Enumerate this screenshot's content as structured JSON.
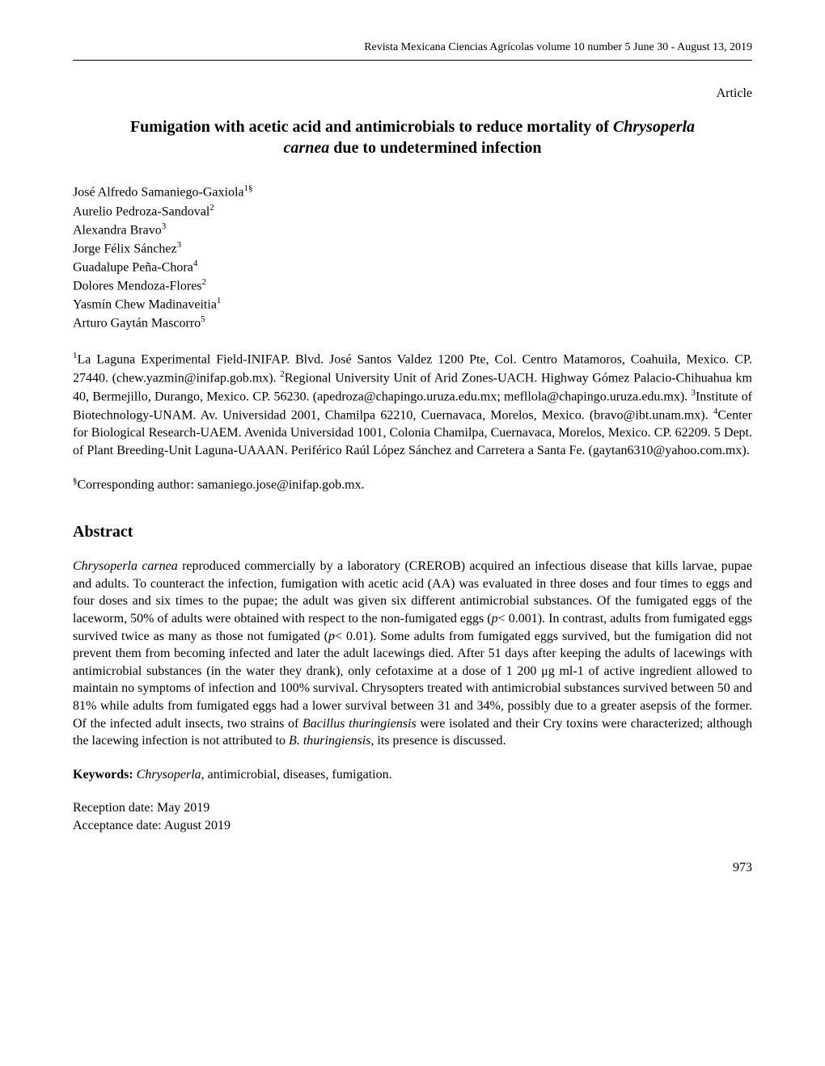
{
  "journal_header": "Revista Mexicana Ciencias Agrícolas  volume 10  number 5  June 30 - August 13, 2019",
  "article_label": "Article",
  "title_prefix": "Fumigation with acetic acid and antimicrobials to reduce mortality of ",
  "title_italic": "Chrysoperla carnea",
  "title_suffix": " due to undetermined infection",
  "authors": [
    {
      "name": "José Alfredo Samaniego-Gaxiola",
      "sup": "1§"
    },
    {
      "name": "Aurelio Pedroza-Sandoval",
      "sup": "2"
    },
    {
      "name": "Alexandra Bravo",
      "sup": "3"
    },
    {
      "name": "Jorge Félix Sánchez",
      "sup": "3"
    },
    {
      "name": "Guadalupe Peña-Chora",
      "sup": "4"
    },
    {
      "name": "Dolores Mendoza-Flores",
      "sup": "2"
    },
    {
      "name": "Yasmín Chew Madinaveitia",
      "sup": "1"
    },
    {
      "name": "Arturo Gaytán Mascorro",
      "sup": "5"
    }
  ],
  "affiliations": {
    "a1_sup": "1",
    "a1": "La Laguna Experimental Field-INIFAP. Blvd. José Santos Valdez 1200 Pte, Col. Centro Matamoros, Coahuila, Mexico. CP. 27440. (chew.yazmin@inifap.gob.mx). ",
    "a2_sup": "2",
    "a2": "Regional University Unit of Arid Zones-UACH. Highway Gómez Palacio-Chihuahua km 40, Bermejillo, Durango, Mexico. CP. 56230. (apedroza@chapingo.uruza.edu.mx; mefllola@chapingo.uruza.edu.mx). ",
    "a3_sup": "3",
    "a3": "Institute of Biotechnology-UNAM. Av. Universidad 2001, Chamilpa 62210, Cuernavaca, Morelos, Mexico. (bravo@ibt.unam.mx). ",
    "a4_sup": "4",
    "a4": "Center for Biological Research-UAEM. Avenida Universidad 1001, Colonia Chamilpa, Cuernavaca, Morelos, Mexico. CP. 62209. 5 Dept. of Plant Breeding-Unit Laguna-UAAAN. Periférico Raúl López Sánchez and Carretera a Santa Fe. (gaytan6310@yahoo.com.mx)."
  },
  "corresponding": {
    "sup": "§",
    "text": "Corresponding author: samaniego.jose@inifap.gob.mx."
  },
  "abstract_heading": "Abstract",
  "abstract": {
    "s1_italic": "Chrysoperla carnea",
    "s1": " reproduced commercially by a laboratory (CREROB) acquired an infectious disease that kills larvae, pupae and adults. To counteract the infection, fumigation with acetic acid (AA) was evaluated in three doses and four times to eggs and four doses and six times to the pupae; the adult was given six different antimicrobial substances. Of the fumigated eggs of the laceworm, 50% of adults were obtained with respect to the non-fumigated eggs (",
    "p1": "p",
    "s2": "< 0.001). In contrast, adults from fumigated eggs survived twice as many as those not fumigated (",
    "p2": "p",
    "s3": "< 0.01). Some adults from fumigated eggs survived, but the fumigation did not prevent them from becoming infected and later the adult lacewings died. After 51 days after keeping the adults of lacewings with antimicrobial substances (in the water they drank), only cefotaxime at a dose of 1 200 μg ml",
    "sup1": "-1",
    "s4": " of active ingredient allowed to maintain no symptoms of infection and 100% survival. Chrysopters treated with antimicrobial substances survived between 50 and 81% while adults from fumigated eggs had a lower survival between 31 and 34%, possibly due to a greater asepsis of the former. Of the infected adult insects, two strains of ",
    "s5_italic": "Bacillus thuringiensis",
    "s5": " were isolated and their Cry toxins were characterized; although the lacewing infection is not attributed to ",
    "s6_italic": "B. thuringiensis",
    "s6": ", its presence is discussed."
  },
  "keywords": {
    "label": "Keywords: ",
    "italic": "Chrysoperla",
    "rest": ", antimicrobial, diseases, fumigation."
  },
  "dates": {
    "reception": "Reception date: May 2019",
    "acceptance": "Acceptance date: August 2019"
  },
  "page_number": "973"
}
